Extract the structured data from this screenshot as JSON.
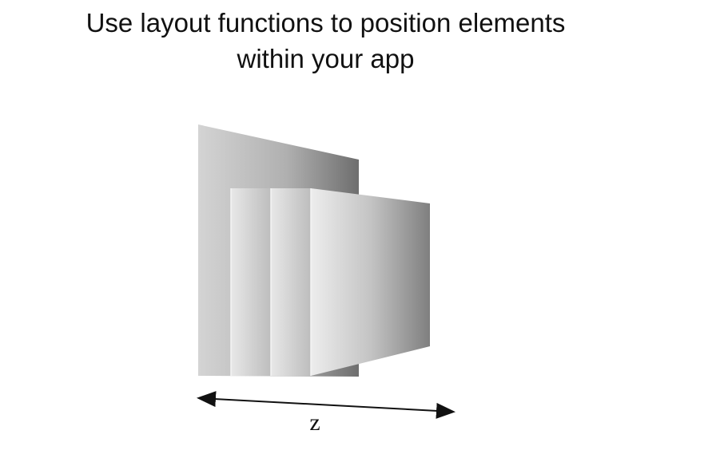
{
  "slide": {
    "title_line_1": "Use layout functions to position elements",
    "title_line_2": "within your app"
  },
  "diagram": {
    "axis_label": "z",
    "layer_count": 4,
    "colors": {
      "layer_light": "#e6e6e6",
      "layer_dark": "#7a7a7a",
      "arrow": "#111111"
    }
  }
}
